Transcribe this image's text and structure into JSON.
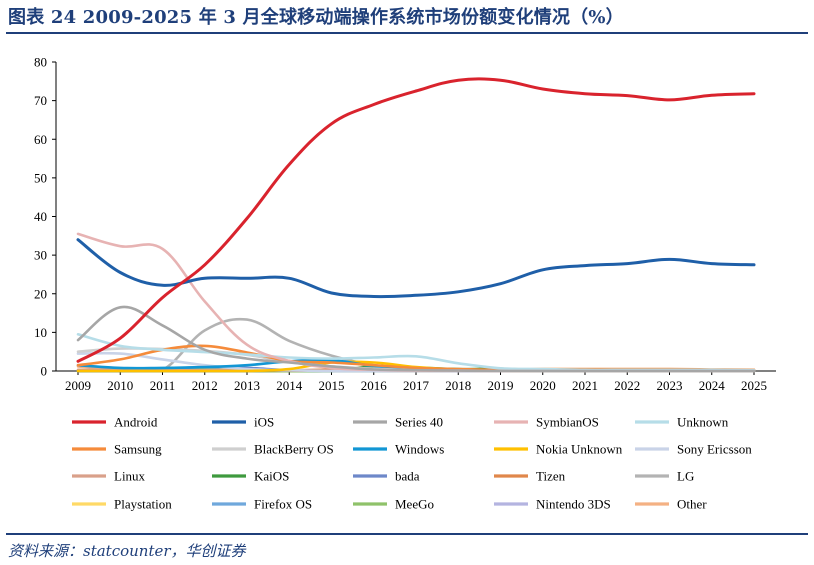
{
  "header": {
    "title": "图表 24   2009-2025 年 3 月全球移动端操作系统市场份额变化情况（%）"
  },
  "footer": {
    "source": "资料来源：statcounter，华创证券"
  },
  "chart_data": {
    "type": "line",
    "title": "",
    "xlabel": "",
    "ylabel": "",
    "x": [
      2009,
      2010,
      2011,
      2012,
      2013,
      2014,
      2015,
      2016,
      2017,
      2018,
      2019,
      2020,
      2021,
      2022,
      2023,
      2024,
      2025
    ],
    "ylim": [
      0,
      80
    ],
    "yticks": [
      0,
      10,
      20,
      30,
      40,
      50,
      60,
      70,
      80
    ],
    "grid": false,
    "legend_position": "bottom",
    "series": [
      {
        "name": "Android",
        "color": "#d9232d",
        "values": [
          2.5,
          8.5,
          19,
          27.5,
          39.5,
          53.5,
          64,
          69,
          72.5,
          75.3,
          75.3,
          73,
          71.8,
          71.3,
          70.2,
          71.4,
          71.8
        ]
      },
      {
        "name": "iOS",
        "color": "#1f5fa8",
        "values": [
          34,
          25.5,
          22.2,
          24,
          24,
          24,
          20.2,
          19.3,
          19.6,
          20.5,
          22.6,
          26.2,
          27.3,
          27.8,
          28.9,
          27.8,
          27.5
        ]
      },
      {
        "name": "Series 40",
        "color": "#a6a6a6",
        "values": [
          8,
          16.5,
          11.8,
          5.5,
          3.2,
          2.2,
          1.2,
          0.4,
          0.2,
          0.1,
          0,
          0,
          0,
          0,
          0,
          0,
          0
        ]
      },
      {
        "name": "SymbianOS",
        "color": "#e7b3b3",
        "values": [
          35.5,
          32.3,
          31.6,
          18,
          6.8,
          2.6,
          0.8,
          0.3,
          0.1,
          0.1,
          0,
          0,
          0,
          0,
          0,
          0,
          0
        ]
      },
      {
        "name": "Unknown",
        "color": "#b6dde8",
        "values": [
          9.5,
          6.5,
          5.5,
          4.9,
          4.3,
          3.5,
          3.2,
          3.5,
          3.8,
          2,
          0.7,
          0.5,
          0.3,
          0.3,
          0.3,
          0.3,
          0.2
        ]
      },
      {
        "name": "Samsung",
        "color": "#f58b3b",
        "values": [
          1.5,
          3,
          5.5,
          6.5,
          4.8,
          2.6,
          2.2,
          1.5,
          0.8,
          0.5,
          0.3,
          0.5,
          0.5,
          0.5,
          0.5,
          0.4,
          0.3
        ]
      },
      {
        "name": "BlackBerry OS",
        "color": "#cfcfcf",
        "values": [
          5,
          5.8,
          5.7,
          5.2,
          4.2,
          2.3,
          1.2,
          0.6,
          0.2,
          0.1,
          0,
          0,
          0,
          0,
          0,
          0,
          0
        ]
      },
      {
        "name": "Windows",
        "color": "#1296d4",
        "values": [
          1.5,
          0.8,
          0.8,
          1,
          1.5,
          2.5,
          2.8,
          1.3,
          0.5,
          0.2,
          0.1,
          0,
          0,
          0,
          0,
          0,
          0
        ]
      },
      {
        "name": "Nokia Unknown",
        "color": "#ffc000",
        "values": [
          0,
          0,
          0,
          0,
          0,
          0.5,
          2.2,
          2.2,
          1,
          0.4,
          0.1,
          0,
          0,
          0,
          0,
          0,
          0
        ]
      },
      {
        "name": "Sony Ericsson",
        "color": "#c9d3e8",
        "values": [
          4.5,
          4.5,
          3,
          1.5,
          0.5,
          0.2,
          0,
          0,
          0,
          0,
          0,
          0,
          0,
          0,
          0,
          0,
          0
        ]
      },
      {
        "name": "Linux",
        "color": "#d9a08a",
        "values": [
          0.3,
          0.3,
          0.2,
          0.2,
          0.2,
          0.1,
          0.1,
          0.1,
          0,
          0,
          0,
          0,
          0,
          0,
          0,
          0,
          0
        ]
      },
      {
        "name": "KaiOS",
        "color": "#3e9a3e",
        "values": [
          0,
          0,
          0,
          0,
          0,
          0,
          0,
          1.2,
          0.9,
          0.5,
          0.6,
          0.2,
          0.1,
          0.1,
          0.1,
          0.1,
          0.1
        ]
      },
      {
        "name": "bada",
        "color": "#6d88c9",
        "values": [
          0,
          0,
          0.5,
          1,
          0.8,
          0.2,
          0,
          0,
          0,
          0,
          0,
          0,
          0,
          0,
          0,
          0,
          0
        ]
      },
      {
        "name": "Tizen",
        "color": "#e0874b",
        "values": [
          0,
          0,
          0,
          0,
          0,
          0.1,
          0.4,
          0.5,
          0.4,
          0.2,
          0.1,
          0.1,
          0,
          0,
          0,
          0,
          0
        ]
      },
      {
        "name": "LG",
        "color": "#b3b3b3",
        "values": [
          0,
          0,
          0.3,
          10.5,
          13.3,
          7.8,
          4,
          1.5,
          0.6,
          0.2,
          0.1,
          0,
          0,
          0,
          0,
          0,
          0
        ]
      },
      {
        "name": "Playstation",
        "color": "#ffd966",
        "values": [
          0,
          0,
          0,
          0,
          0,
          0,
          0.2,
          0.3,
          0.2,
          0.1,
          0.1,
          0,
          0,
          0,
          0,
          0,
          0
        ]
      },
      {
        "name": "Firefox OS",
        "color": "#6fa8dc",
        "values": [
          0,
          0,
          0,
          0,
          0,
          0.1,
          0.2,
          0.1,
          0.1,
          0,
          0,
          0,
          0,
          0,
          0,
          0,
          0
        ]
      },
      {
        "name": "MeeGo",
        "color": "#8fc26a",
        "values": [
          0,
          0,
          0.2,
          0.3,
          0.1,
          0,
          0,
          0,
          0,
          0,
          0,
          0,
          0,
          0,
          0,
          0,
          0
        ]
      },
      {
        "name": "Nintendo 3DS",
        "color": "#b4b4e0",
        "values": [
          0,
          0,
          0,
          0.1,
          0.2,
          0.2,
          0.1,
          0.1,
          0.1,
          0,
          0,
          0,
          0,
          0,
          0,
          0,
          0
        ]
      },
      {
        "name": "Other",
        "color": "#f4b183",
        "values": [
          1.2,
          0.5,
          0.4,
          0.3,
          0.3,
          0.2,
          0.2,
          0.2,
          0.2,
          0.2,
          0.2,
          0.2,
          0.3,
          0.4,
          0.3,
          0.3,
          0.3
        ]
      }
    ]
  }
}
